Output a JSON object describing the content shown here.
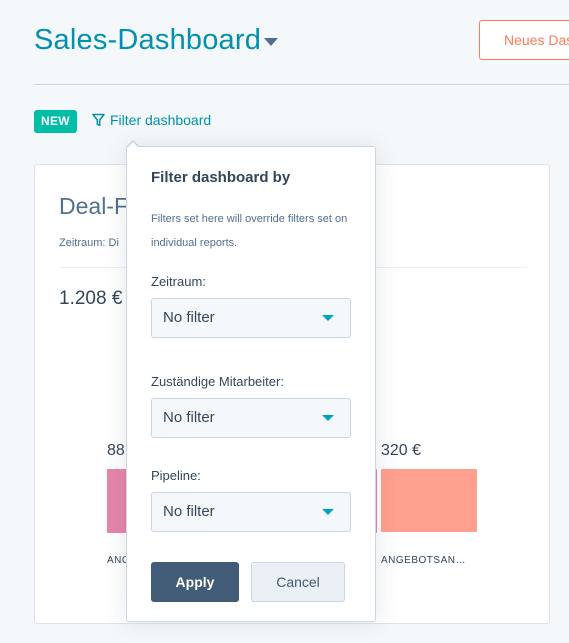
{
  "header": {
    "title": "Sales-Dashboard",
    "new_dashboard_button": "Neues Das"
  },
  "toolbar": {
    "new_badge": "NEW",
    "filter_link": "Filter dashboard"
  },
  "report": {
    "title": "Deal-F",
    "subtitle": "Zeitraum: Di",
    "total": "1.208 €",
    "bars": [
      {
        "value_label": "88",
        "category_label": "ANG",
        "color": "#e685a9"
      },
      {
        "value_label": "",
        "category_label": "",
        "color": "#e685a9"
      },
      {
        "value_label": "320 €",
        "category_label": "ANGEBOTSAN…",
        "color": "#ff9f8e"
      }
    ]
  },
  "filter_popover": {
    "heading": "Filter dashboard by",
    "hint": "Filters set here will override filters set on individual reports.",
    "fields": [
      {
        "label": "Zeitraum:",
        "value": "No filter"
      },
      {
        "label": "Zuständige Mitarbeiter:",
        "value": "No filter"
      },
      {
        "label": "Pipeline:",
        "value": "No filter"
      }
    ],
    "apply_label": "Apply",
    "cancel_label": "Cancel"
  },
  "colors": {
    "brand_teal": "#0091ae",
    "accent_orange": "#ff7a59",
    "badge_green": "#00bda5",
    "primary_button": "#425b76"
  },
  "icons": {
    "title_dropdown": "chevron-down-icon",
    "filter": "funnel-icon",
    "select_dropdown": "caret-down-icon"
  }
}
